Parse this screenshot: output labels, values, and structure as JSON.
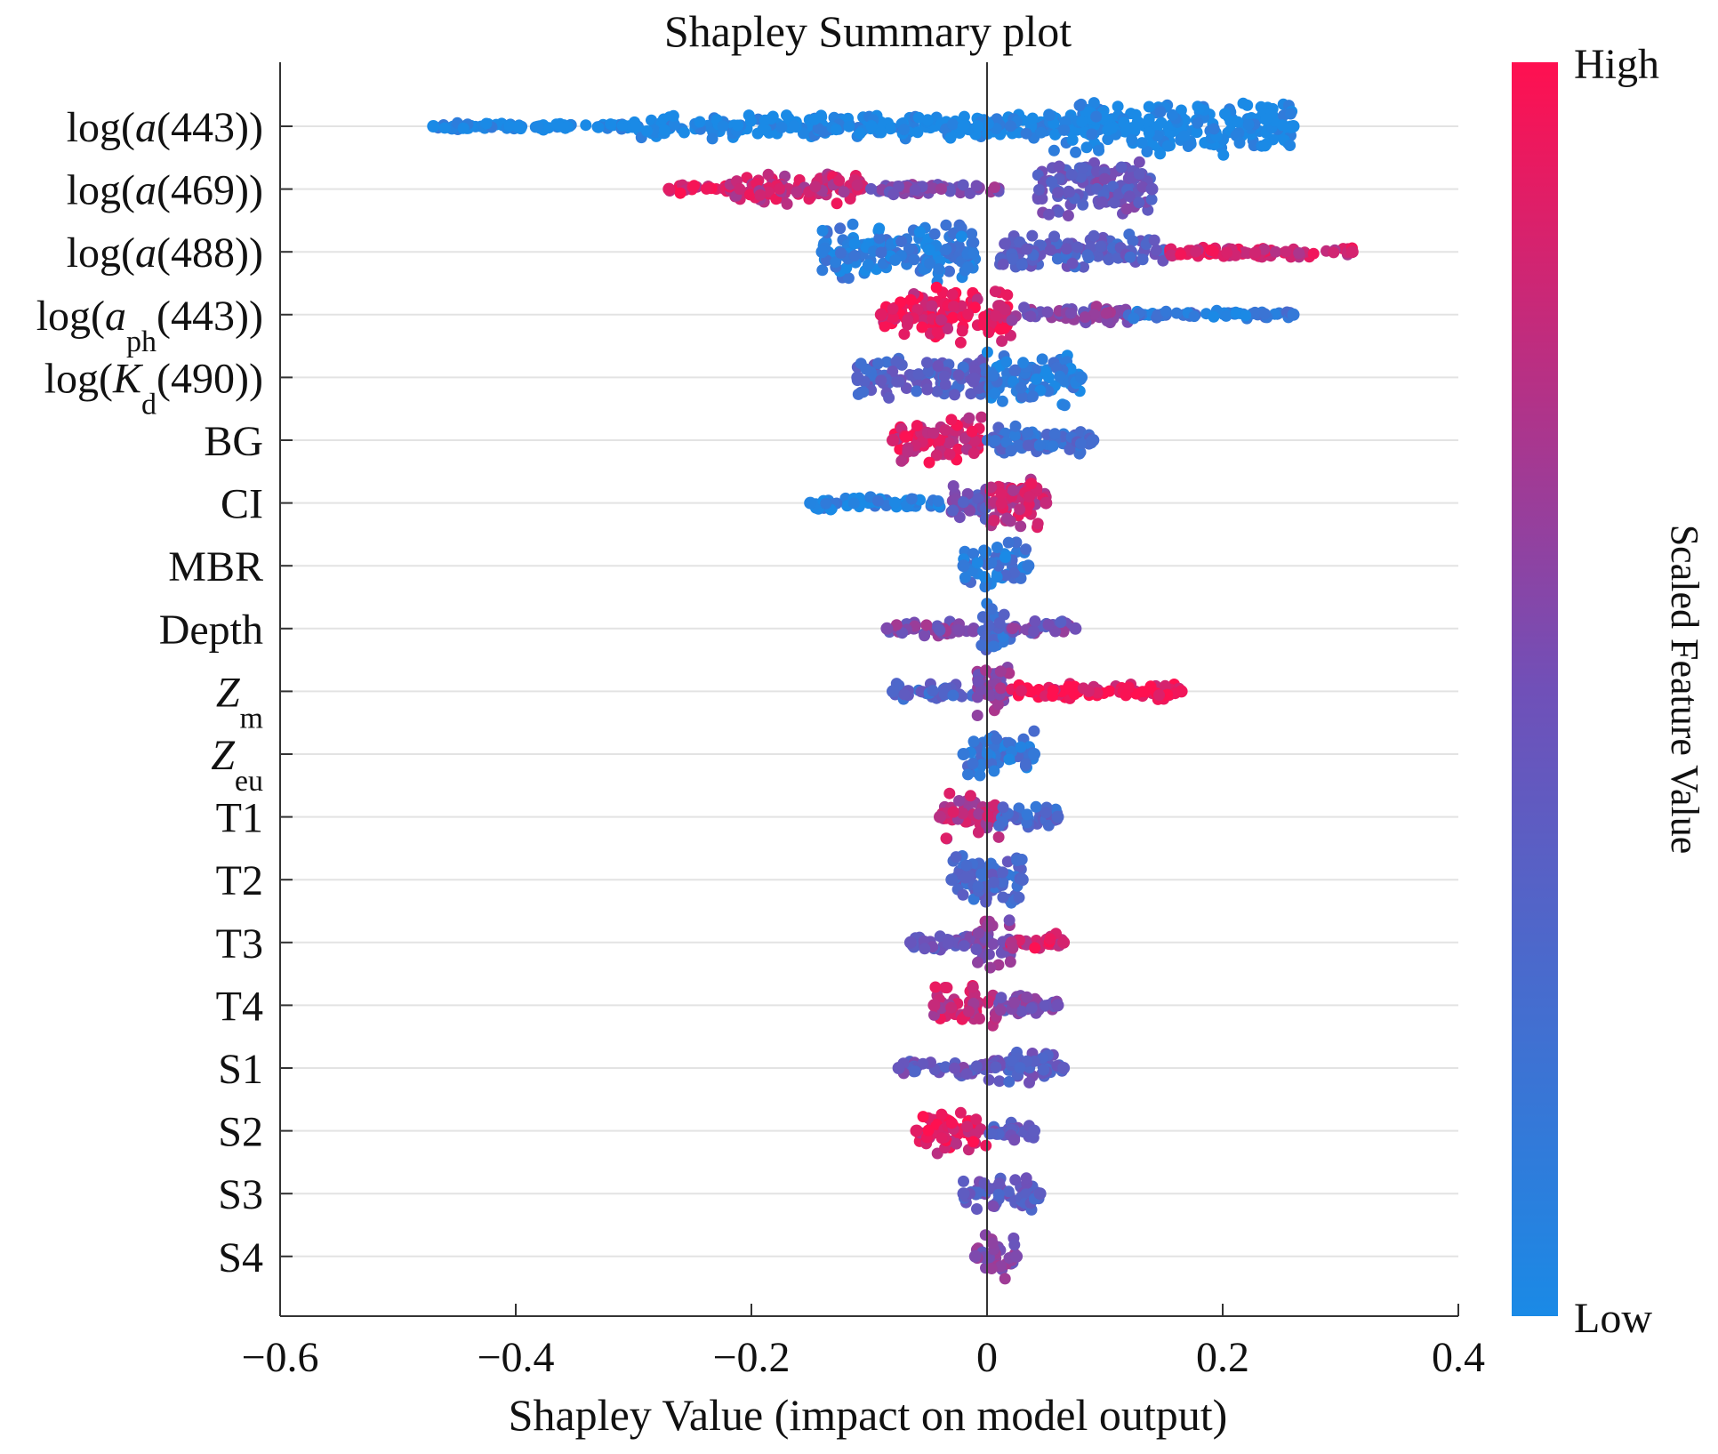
{
  "chart_data": {
    "type": "scatter",
    "title": "Shapley Summary plot",
    "xlabel": "Shapley Value (impact on model output)",
    "xlim": [
      -0.6,
      0.4
    ],
    "xticks": [
      -0.6,
      -0.4,
      -0.2,
      0,
      0.2,
      0.4
    ],
    "xtick_labels": [
      "−0.6",
      "−0.4",
      "−0.2",
      "0",
      "0.2",
      "0.4"
    ],
    "grid": true,
    "colorbar": {
      "label": "Scaled Feature Value",
      "high_label": "High",
      "low_label": "Low",
      "high_color": "#ff1050",
      "low_color": "#1a8ae6"
    },
    "features": [
      {
        "pre": "log(",
        "var": "a",
        "sub": "",
        "post": "(443))",
        "min": -0.47,
        "max": 0.26,
        "segments": [
          {
            "from": -0.47,
            "to": -0.3,
            "width": 0.12,
            "hue": 0.0
          },
          {
            "from": -0.3,
            "to": 0.05,
            "width": 0.45,
            "hue": 0.0
          },
          {
            "from": 0.05,
            "to": 0.26,
            "width": 1.0,
            "hue": 0.0
          }
        ]
      },
      {
        "pre": "log(",
        "var": "a",
        "sub": "",
        "post": "(469))",
        "min": -0.27,
        "max": 0.14,
        "segments": [
          {
            "from": -0.27,
            "to": -0.22,
            "width": 0.15,
            "hue": 0.9
          },
          {
            "from": -0.22,
            "to": -0.1,
            "width": 0.55,
            "hue": 0.8
          },
          {
            "from": -0.1,
            "to": 0.01,
            "width": 0.2,
            "hue": 0.55
          },
          {
            "from": 0.04,
            "to": 0.14,
            "width": 1.0,
            "hue": 0.45
          }
        ]
      },
      {
        "pre": "log(",
        "var": "a",
        "sub": "",
        "post": "(488))",
        "min": -0.14,
        "max": 0.31,
        "segments": [
          {
            "from": -0.14,
            "to": -0.01,
            "width": 1.0,
            "hue": 0.1
          },
          {
            "from": 0.01,
            "to": 0.15,
            "width": 0.6,
            "hue": 0.35
          },
          {
            "from": 0.15,
            "to": 0.31,
            "width": 0.2,
            "hue": 0.85
          }
        ]
      },
      {
        "pre": "log(",
        "var": "a",
        "sub": "ph",
        "post": "(443))",
        "min": -0.09,
        "max": 0.26,
        "segments": [
          {
            "from": -0.09,
            "to": 0.02,
            "width": 1.0,
            "hue": 0.9
          },
          {
            "from": 0.02,
            "to": 0.12,
            "width": 0.3,
            "hue": 0.55
          },
          {
            "from": 0.12,
            "to": 0.26,
            "width": 0.15,
            "hue": 0.15
          }
        ]
      },
      {
        "pre": "log(",
        "var": "K",
        "sub": "d",
        "post": "(490))",
        "min": -0.11,
        "max": 0.08,
        "segments": [
          {
            "from": -0.11,
            "to": 0.0,
            "width": 0.7,
            "hue": 0.35
          },
          {
            "from": 0.0,
            "to": 0.08,
            "width": 1.0,
            "hue": 0.1
          }
        ]
      },
      {
        "label": "BG",
        "min": -0.08,
        "max": 0.09,
        "segments": [
          {
            "from": -0.08,
            "to": 0.0,
            "width": 0.8,
            "hue": 0.85
          },
          {
            "from": 0.0,
            "to": 0.09,
            "width": 0.5,
            "hue": 0.25
          }
        ]
      },
      {
        "label": "CI",
        "min": -0.15,
        "max": 0.05,
        "segments": [
          {
            "from": -0.15,
            "to": -0.04,
            "width": 0.25,
            "hue": 0.05
          },
          {
            "from": -0.04,
            "to": 0.0,
            "width": 0.6,
            "hue": 0.45
          },
          {
            "from": 0.0,
            "to": 0.05,
            "width": 1.0,
            "hue": 0.8
          }
        ]
      },
      {
        "label": "MBR",
        "min": -0.02,
        "max": 0.035,
        "segments": [
          {
            "from": -0.02,
            "to": 0.035,
            "width": 0.8,
            "hue": 0.15
          }
        ]
      },
      {
        "label": "Depth",
        "min": -0.085,
        "max": 0.075,
        "segments": [
          {
            "from": -0.085,
            "to": -0.01,
            "width": 0.3,
            "hue": 0.55
          },
          {
            "from": -0.01,
            "to": 0.02,
            "width": 1.0,
            "hue": 0.25
          },
          {
            "from": 0.02,
            "to": 0.075,
            "width": 0.3,
            "hue": 0.5
          }
        ]
      },
      {
        "var": "Z",
        "sub": "m",
        "min": -0.08,
        "max": 0.165,
        "segments": [
          {
            "from": -0.08,
            "to": -0.01,
            "width": 0.3,
            "hue": 0.3
          },
          {
            "from": -0.01,
            "to": 0.02,
            "width": 1.0,
            "hue": 0.6
          },
          {
            "from": 0.02,
            "to": 0.165,
            "width": 0.3,
            "hue": 0.95
          }
        ]
      },
      {
        "var": "Z",
        "sub": "eu",
        "min": -0.02,
        "max": 0.04,
        "segments": [
          {
            "from": -0.02,
            "to": 0.04,
            "width": 0.8,
            "hue": 0.15
          }
        ]
      },
      {
        "label": "T1",
        "min": -0.04,
        "max": 0.06,
        "segments": [
          {
            "from": -0.04,
            "to": 0.01,
            "width": 0.8,
            "hue": 0.75
          },
          {
            "from": 0.01,
            "to": 0.06,
            "width": 0.4,
            "hue": 0.3
          }
        ]
      },
      {
        "label": "T2",
        "min": -0.03,
        "max": 0.03,
        "segments": [
          {
            "from": -0.03,
            "to": 0.03,
            "width": 0.9,
            "hue": 0.3
          }
        ]
      },
      {
        "label": "T3",
        "min": -0.065,
        "max": 0.065,
        "segments": [
          {
            "from": -0.065,
            "to": -0.01,
            "width": 0.3,
            "hue": 0.45
          },
          {
            "from": -0.01,
            "to": 0.02,
            "width": 1.0,
            "hue": 0.6
          },
          {
            "from": 0.02,
            "to": 0.065,
            "width": 0.35,
            "hue": 0.85
          }
        ]
      },
      {
        "label": "T4",
        "min": -0.045,
        "max": 0.06,
        "segments": [
          {
            "from": -0.045,
            "to": 0.01,
            "width": 0.8,
            "hue": 0.8
          },
          {
            "from": 0.01,
            "to": 0.06,
            "width": 0.4,
            "hue": 0.5
          }
        ]
      },
      {
        "label": "S1",
        "min": -0.075,
        "max": 0.065,
        "segments": [
          {
            "from": -0.075,
            "to": 0.0,
            "width": 0.3,
            "hue": 0.45
          },
          {
            "from": 0.0,
            "to": 0.065,
            "width": 0.6,
            "hue": 0.4
          }
        ]
      },
      {
        "label": "S2",
        "min": -0.06,
        "max": 0.04,
        "segments": [
          {
            "from": -0.06,
            "to": 0.0,
            "width": 0.8,
            "hue": 0.9
          },
          {
            "from": 0.0,
            "to": 0.04,
            "width": 0.4,
            "hue": 0.4
          }
        ]
      },
      {
        "label": "S3",
        "min": -0.02,
        "max": 0.045,
        "segments": [
          {
            "from": -0.02,
            "to": 0.045,
            "width": 0.7,
            "hue": 0.4
          }
        ]
      },
      {
        "label": "S4",
        "min": -0.01,
        "max": 0.025,
        "segments": [
          {
            "from": -0.01,
            "to": 0.025,
            "width": 0.8,
            "hue": 0.55
          }
        ]
      }
    ]
  }
}
